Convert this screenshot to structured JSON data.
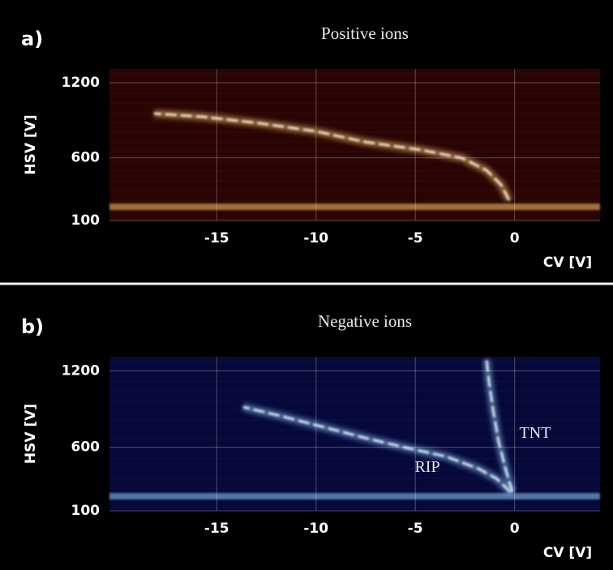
{
  "chart_data": [
    {
      "type": "heatmap",
      "panel": "a)",
      "title": "Positive ions",
      "xlabel": "CV [V]",
      "ylabel": "HSV [V]",
      "xlim": [
        -20.4,
        4.3
      ],
      "xticks": [
        -15,
        -10,
        -5,
        0
      ],
      "ylim": [
        100,
        1310
      ],
      "yticks": [
        100,
        600,
        1200
      ],
      "color": "#ffcc66",
      "background": "#2a0303",
      "grid": true
    },
    {
      "type": "heatmap",
      "panel": "b)",
      "title": "Negative ions",
      "xlabel": "CV [V]",
      "ylabel": "HSV [V]",
      "xlim": [
        -20.4,
        4.3
      ],
      "xticks": [
        -15,
        -10,
        -5,
        0
      ],
      "ylim": [
        100,
        1310
      ],
      "yticks": [
        100,
        600,
        1200
      ],
      "color": "#8ed0ff",
      "background": "#06083a",
      "grid": true,
      "annotations": [
        "RIP",
        "TNT"
      ]
    }
  ]
}
